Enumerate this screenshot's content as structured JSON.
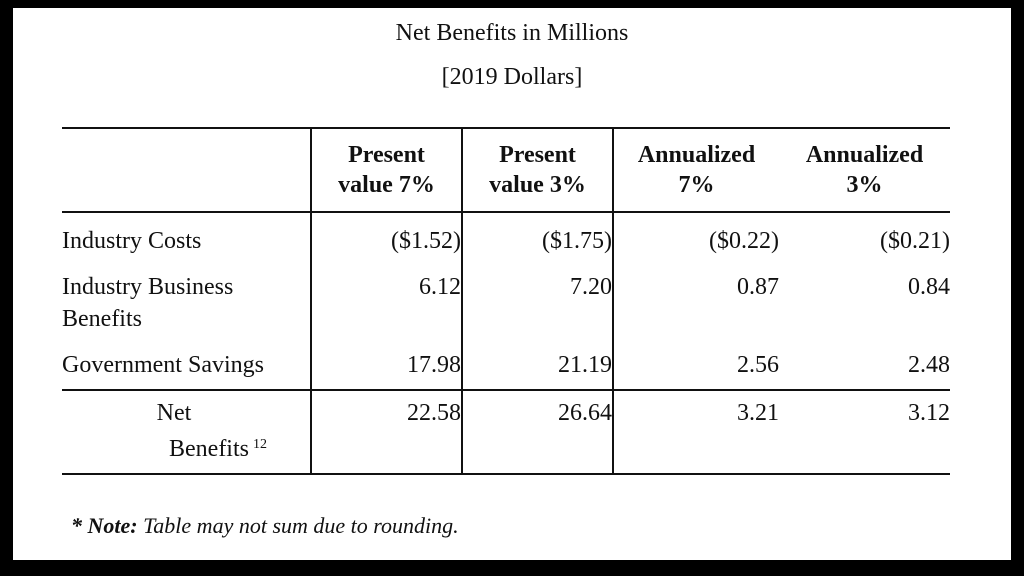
{
  "title": "Net Benefits in Millions",
  "subtitle": "[2019 Dollars]",
  "table": {
    "headers": [
      {
        "line1": "Present",
        "line2": "value 7%"
      },
      {
        "line1": "Present",
        "line2": "value 3%"
      },
      {
        "line1": "Annualized",
        "line2": "7%"
      },
      {
        "line1": "Annualized",
        "line2": "3%"
      }
    ],
    "rows": [
      {
        "label": "Industry Costs",
        "values": [
          "($1.52)",
          "($1.75)",
          "($0.22)",
          "($0.21)"
        ]
      },
      {
        "label_line1": "Industry Business",
        "label_line2": "Benefits",
        "values": [
          "6.12",
          "7.20",
          "0.87",
          "0.84"
        ]
      },
      {
        "label": "Government Savings",
        "values": [
          "17.98",
          "21.19",
          "2.56",
          "2.48"
        ]
      },
      {
        "label_line1": "Net",
        "label_line2": "Benefits",
        "footnote": "12",
        "values": [
          "22.58",
          "26.64",
          "3.21",
          "3.12"
        ]
      }
    ]
  },
  "note": {
    "marker": "* Note:",
    "text": "Table may not sum due to rounding."
  }
}
